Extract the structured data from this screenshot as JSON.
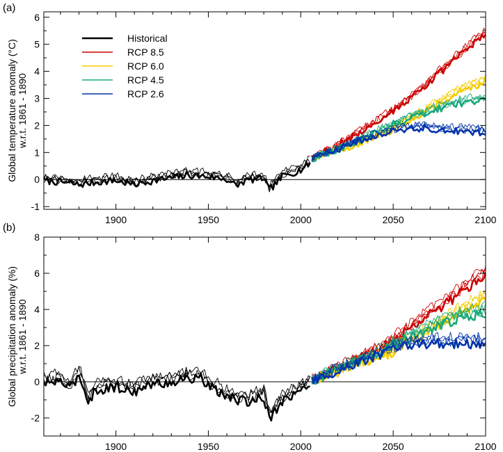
{
  "chart_data": [
    {
      "type": "line",
      "panel_label": "(a)",
      "ylabel": "Global temperature anomaly (°C)",
      "ylabel_sub": "w.r.t. 1861 - 1890",
      "xlim": [
        1861,
        2100
      ],
      "ylim": [
        -1.1,
        6.2
      ],
      "xticks": [
        1900,
        1950,
        2000,
        2050,
        2100
      ],
      "yticks": [
        -1,
        0,
        1,
        2,
        3,
        4,
        5,
        6
      ],
      "zero_line": true,
      "grid": false,
      "legend_position": "top-left",
      "series": [
        {
          "name": "Historical",
          "color": "#000000",
          "x": [
            1861,
            1870,
            1880,
            1890,
            1900,
            1910,
            1920,
            1930,
            1940,
            1950,
            1960,
            1965,
            1970,
            1980,
            1983,
            1990,
            2000,
            2005
          ],
          "y": [
            0.05,
            0.0,
            -0.1,
            0.0,
            0.05,
            -0.1,
            0.05,
            0.15,
            0.25,
            0.2,
            0.1,
            -0.15,
            0.05,
            0.15,
            -0.3,
            0.2,
            0.45,
            0.7
          ]
        },
        {
          "name": "RCP 8.5",
          "color": "#cc0000",
          "x": [
            2006,
            2020,
            2030,
            2040,
            2050,
            2060,
            2070,
            2080,
            2090,
            2100
          ],
          "y": [
            0.8,
            1.3,
            1.7,
            2.15,
            2.6,
            3.1,
            3.7,
            4.3,
            4.9,
            5.5
          ]
        },
        {
          "name": "RCP 6.0",
          "color": "#f5cc00",
          "x": [
            2006,
            2020,
            2030,
            2040,
            2050,
            2060,
            2070,
            2080,
            2090,
            2100
          ],
          "y": [
            0.8,
            1.1,
            1.35,
            1.6,
            1.9,
            2.3,
            2.7,
            3.1,
            3.45,
            3.7
          ]
        },
        {
          "name": "RCP 4.5",
          "color": "#1aa87a",
          "x": [
            2006,
            2020,
            2030,
            2040,
            2050,
            2060,
            2070,
            2080,
            2090,
            2100
          ],
          "y": [
            0.8,
            1.15,
            1.45,
            1.75,
            2.05,
            2.35,
            2.6,
            2.8,
            2.95,
            3.0
          ]
        },
        {
          "name": "RCP 2.6",
          "color": "#0033aa",
          "x": [
            2006,
            2020,
            2030,
            2040,
            2050,
            2060,
            2070,
            2080,
            2090,
            2100
          ],
          "y": [
            0.8,
            1.15,
            1.45,
            1.65,
            1.85,
            1.95,
            1.95,
            1.9,
            1.85,
            1.8
          ]
        }
      ]
    },
    {
      "type": "line",
      "panel_label": "(b)",
      "ylabel": "Global precipitation anomaly (%)",
      "ylabel_sub": "w.r.t. 1861 - 1890",
      "xlim": [
        1861,
        2100
      ],
      "ylim": [
        -3.0,
        8.0
      ],
      "xticks": [
        1900,
        1950,
        2000,
        2050,
        2100
      ],
      "yticks": [
        -2,
        0,
        2,
        4,
        6,
        8
      ],
      "zero_line": true,
      "grid": false,
      "series": [
        {
          "name": "Historical",
          "color": "#000000",
          "x": [
            1861,
            1870,
            1875,
            1880,
            1885,
            1890,
            1900,
            1910,
            1920,
            1930,
            1940,
            1945,
            1950,
            1960,
            1970,
            1980,
            1983,
            1990,
            2000,
            2005
          ],
          "y": [
            0.1,
            0.3,
            -0.2,
            0.6,
            -0.8,
            -0.2,
            -0.1,
            -0.3,
            0.1,
            0.2,
            0.4,
            0.5,
            0.0,
            -0.6,
            -0.9,
            -0.6,
            -1.8,
            -0.8,
            -0.3,
            0.1
          ]
        },
        {
          "name": "RCP 8.5",
          "color": "#cc0000",
          "x": [
            2006,
            2020,
            2030,
            2040,
            2050,
            2060,
            2070,
            2080,
            2090,
            2100
          ],
          "y": [
            0.1,
            0.8,
            1.3,
            1.8,
            2.4,
            3.1,
            3.9,
            4.6,
            5.4,
            6.1
          ]
        },
        {
          "name": "RCP 6.0",
          "color": "#f5cc00",
          "x": [
            2006,
            2020,
            2030,
            2040,
            2050,
            2060,
            2070,
            2080,
            2090,
            2100
          ],
          "y": [
            0.1,
            0.6,
            1.0,
            1.4,
            1.8,
            2.4,
            3.0,
            3.6,
            4.2,
            4.8
          ]
        },
        {
          "name": "RCP 4.5",
          "color": "#1aa87a",
          "x": [
            2006,
            2020,
            2030,
            2040,
            2050,
            2060,
            2070,
            2080,
            2090,
            2100
          ],
          "y": [
            0.1,
            0.8,
            1.2,
            1.6,
            2.1,
            2.6,
            3.1,
            3.5,
            3.8,
            4.0
          ]
        },
        {
          "name": "RCP 2.6",
          "color": "#0033aa",
          "x": [
            2006,
            2020,
            2030,
            2040,
            2050,
            2060,
            2070,
            2080,
            2090,
            2100
          ],
          "y": [
            0.1,
            0.7,
            1.1,
            1.5,
            1.9,
            2.2,
            2.3,
            2.3,
            2.3,
            2.2
          ]
        }
      ]
    }
  ]
}
